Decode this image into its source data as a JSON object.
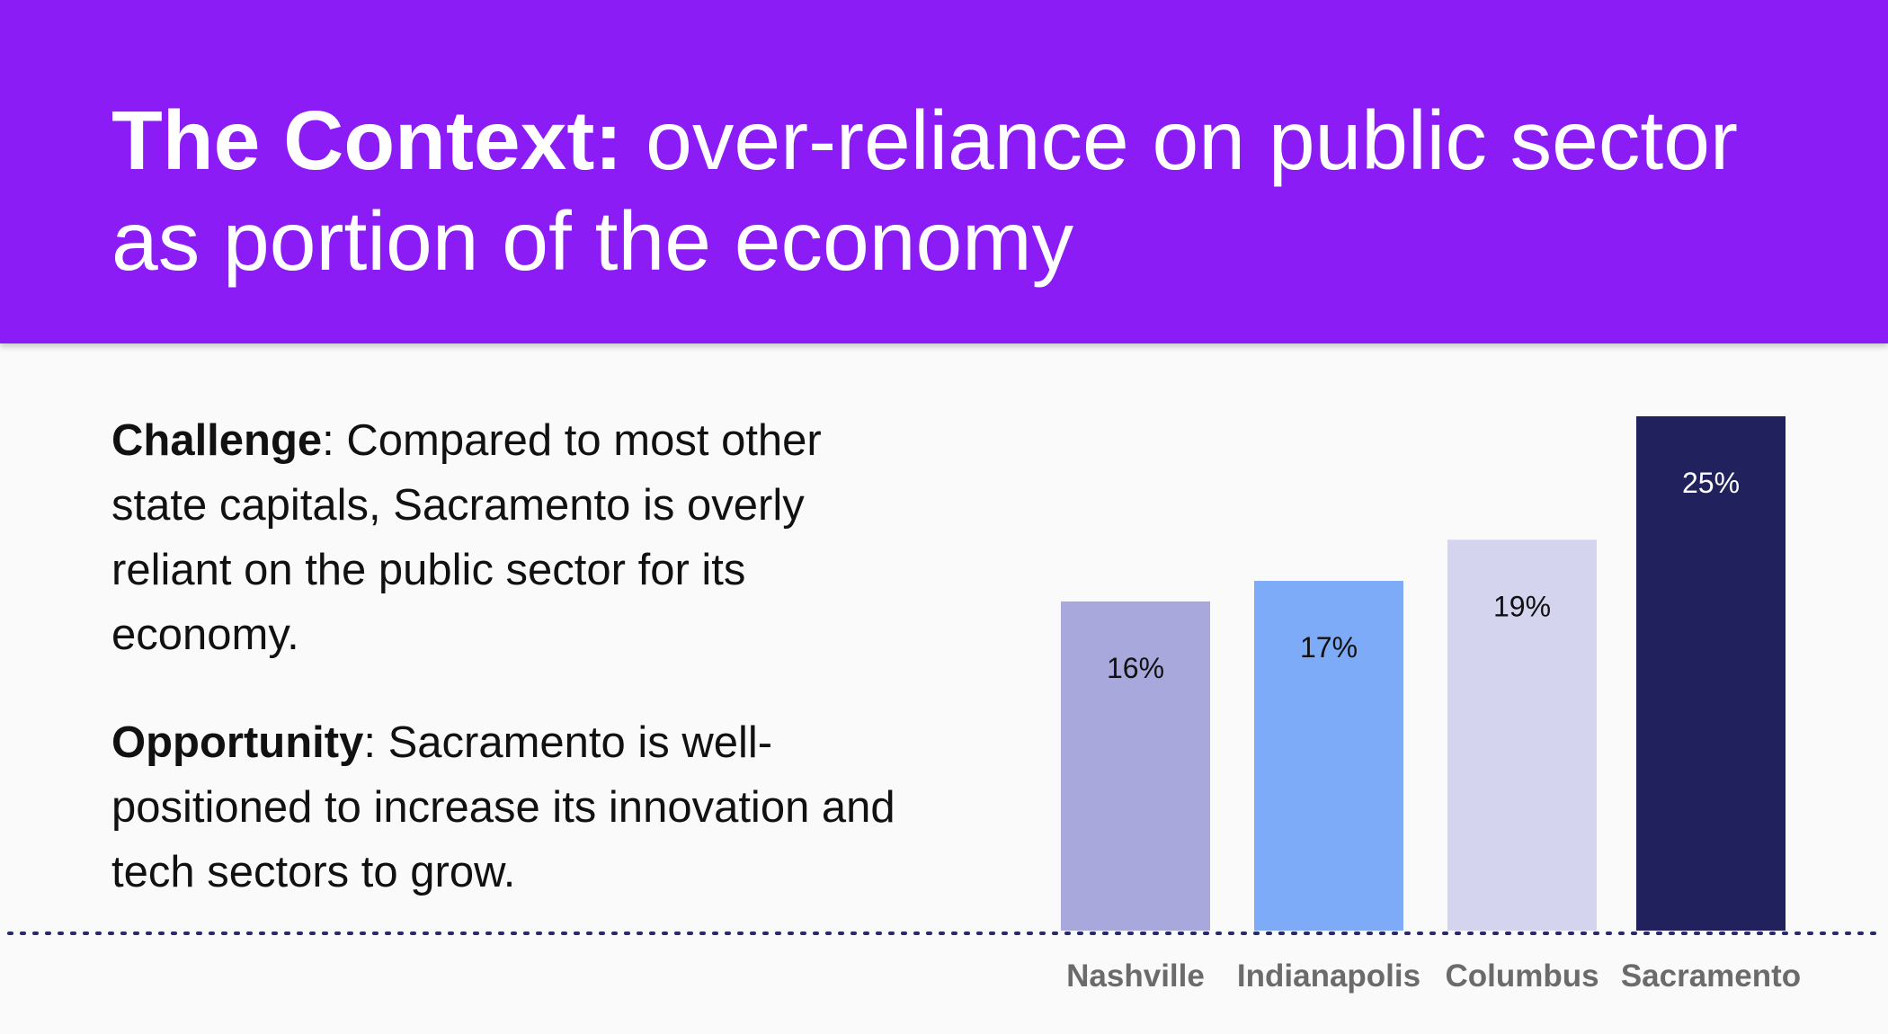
{
  "header": {
    "title_bold": "The Context:",
    "title_rest": " over-reliance on public sector as portion of the economy"
  },
  "challenge": {
    "term": "Challenge",
    "text": ": Compared to most other state capitals, Sacramento is overly reliant on the public sector for its economy."
  },
  "opportunity": {
    "term": "Opportunity",
    "text": ": Sacramento is well-positioned to increase its innovation and tech sectors to grow."
  },
  "colors": {
    "header_bg": "#8b1cf5",
    "bar_nashville": "#a8a8dc",
    "bar_indianapolis": "#7eabf7",
    "bar_columbus": "#d4d4ee",
    "bar_sacramento": "#21215e",
    "baseline": "#2a2a6a"
  },
  "chart_data": {
    "type": "bar",
    "categories": [
      "Nashville",
      "Indianapolis",
      "Columbus",
      "Sacramento"
    ],
    "values": [
      16,
      17,
      19,
      25
    ],
    "data_labels": [
      "16%",
      "17%",
      "19%",
      "25%"
    ],
    "bar_colors": [
      "#a8a8dc",
      "#7eabf7",
      "#d4d4ee",
      "#21215e"
    ],
    "label_colors": [
      "#111111",
      "#111111",
      "#111111",
      "#ffffff"
    ],
    "ylim": [
      0,
      25
    ],
    "grid": false,
    "legend": "none"
  }
}
